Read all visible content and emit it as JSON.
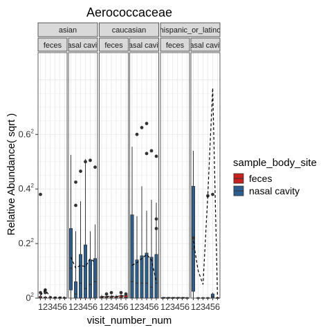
{
  "chart_data": {
    "type": "box",
    "title": "Aerococcaceae",
    "xlabel": "visit_number_num",
    "ylabel": "Relative Abundance( sqrt )",
    "ylim": [
      0,
      0.9
    ],
    "y_ticks": [
      {
        "value": 0.0,
        "label": "0",
        "sup": "2"
      },
      {
        "value": 0.2,
        "label": "0.2",
        "sup": "2"
      },
      {
        "value": 0.4,
        "label": "0.4",
        "sup": "2"
      },
      {
        "value": 0.6,
        "label": "0.6",
        "sup": "2"
      }
    ],
    "x_ticks": [
      "1",
      "2",
      "3",
      "4",
      "5",
      "6"
    ],
    "strips_outer": [
      "asian",
      "caucasian",
      "hispanic_or_latino"
    ],
    "strips_inner": [
      "feces",
      "nasal cavity"
    ],
    "legend": {
      "title": "sample_body_site",
      "items": [
        {
          "label": "feces",
          "color": "#c8211e"
        },
        {
          "label": "nasal cavity",
          "color": "#2a5f8f"
        }
      ]
    },
    "colors": {
      "feces": "#c8211e",
      "nasal_cavity": "#2a5f8f",
      "strip_bg": "#d9d9d9",
      "grid": "#ebebeb"
    },
    "panels": [
      {
        "group": "asian",
        "site": "feces",
        "boxes": [
          {
            "x": 1,
            "min": 0,
            "q1": 0,
            "med": 0.002,
            "q3": 0.006,
            "max": 0.012
          },
          {
            "x": 2,
            "min": 0,
            "q1": 0,
            "med": 0.001,
            "q3": 0.004,
            "max": 0.008
          },
          {
            "x": 3,
            "min": 0,
            "q1": 0,
            "med": 0.001,
            "q3": 0.003,
            "max": 0.006
          },
          {
            "x": 4,
            "min": 0,
            "q1": 0,
            "med": 0.001,
            "q3": 0.002,
            "max": 0.004
          },
          {
            "x": 5,
            "min": 0,
            "q1": 0,
            "med": 0.001,
            "q3": 0.002,
            "max": 0.004
          },
          {
            "x": 6,
            "min": 0,
            "q1": 0,
            "med": 0.001,
            "q3": 0.002,
            "max": 0.004
          }
        ],
        "outliers": [
          [
            1,
            0.38
          ],
          [
            1,
            0.02
          ],
          [
            2,
            0.03
          ],
          [
            2,
            0.02
          ]
        ],
        "mean_line": [
          [
            1,
            0.01
          ],
          [
            2,
            0.03
          ],
          [
            3,
            0.005
          ],
          [
            4,
            0.004
          ],
          [
            5,
            0.004
          ],
          [
            6,
            0.004
          ]
        ]
      },
      {
        "group": "asian",
        "site": "nasal cavity",
        "boxes": [
          {
            "x": 1,
            "min": 0,
            "q1": 0.03,
            "med": 0.11,
            "q3": 0.255,
            "max": 0.525
          },
          {
            "x": 2,
            "min": 0,
            "q1": 0.0,
            "med": 0.015,
            "q3": 0.06,
            "max": 0.245
          },
          {
            "x": 3,
            "min": 0,
            "q1": 0.0,
            "med": 0.055,
            "q3": 0.16,
            "max": 0.355
          },
          {
            "x": 4,
            "min": 0,
            "q1": 0.0,
            "med": 0.035,
            "q3": 0.195,
            "max": 0.51
          },
          {
            "x": 5,
            "min": 0,
            "q1": 0.0,
            "med": 0.05,
            "q3": 0.14,
            "max": 0.245
          },
          {
            "x": 6,
            "min": 0,
            "q1": 0.0,
            "med": 0.06,
            "q3": 0.145,
            "max": 0.27
          }
        ],
        "outliers": [
          [
            2,
            0.425
          ],
          [
            2,
            0.34
          ],
          [
            3,
            0.465
          ],
          [
            4,
            0.5
          ],
          [
            5,
            0.505
          ],
          [
            6,
            0.48
          ]
        ],
        "mean_line": [
          [
            1,
            0.15
          ],
          [
            2,
            0.11
          ],
          [
            3,
            0.12
          ],
          [
            4,
            0.115
          ],
          [
            5,
            0.145
          ],
          [
            6,
            0.13
          ]
        ]
      },
      {
        "group": "caucasian",
        "site": "feces",
        "boxes": [
          {
            "x": 1,
            "min": 0,
            "q1": 0,
            "med": 0.002,
            "q3": 0.006,
            "max": 0.012
          },
          {
            "x": 2,
            "min": 0,
            "q1": 0,
            "med": 0.002,
            "q3": 0.006,
            "max": 0.012
          },
          {
            "x": 3,
            "min": 0,
            "q1": 0,
            "med": 0.002,
            "q3": 0.006,
            "max": 0.012
          },
          {
            "x": 4,
            "min": 0,
            "q1": 0,
            "med": 0.002,
            "q3": 0.006,
            "max": 0.012
          },
          {
            "x": 5,
            "min": 0,
            "q1": 0,
            "med": 0.002,
            "q3": 0.01,
            "max": 0.02
          },
          {
            "x": 6,
            "min": 0,
            "q1": 0,
            "med": 0.002,
            "q3": 0.01,
            "max": 0.02
          }
        ],
        "outliers": [
          [
            2,
            0.015
          ],
          [
            3,
            0.02
          ],
          [
            5,
            0.02
          ],
          [
            6,
            0.015
          ]
        ],
        "mean_line": [
          [
            1,
            0.005
          ],
          [
            2,
            0.006
          ],
          [
            3,
            0.007
          ],
          [
            4,
            0.006
          ],
          [
            5,
            0.008
          ],
          [
            6,
            0.008
          ]
        ]
      },
      {
        "group": "caucasian",
        "site": "nasal cavity",
        "boxes": [
          {
            "x": 1,
            "min": 0,
            "q1": 0.0,
            "med": 0.06,
            "q3": 0.305,
            "max": 0.555
          },
          {
            "x": 2,
            "min": 0,
            "q1": 0.0,
            "med": 0.055,
            "q3": 0.14,
            "max": 0.3
          },
          {
            "x": 3,
            "min": 0,
            "q1": 0.0,
            "med": 0.055,
            "q3": 0.155,
            "max": 0.41
          },
          {
            "x": 4,
            "min": 0,
            "q1": 0.0,
            "med": 0.055,
            "q3": 0.165,
            "max": 0.32
          },
          {
            "x": 5,
            "min": 0,
            "q1": 0.0,
            "med": 0.04,
            "q3": 0.15,
            "max": 0.36
          },
          {
            "x": 6,
            "min": 0,
            "q1": 0.0,
            "med": 0.055,
            "q3": 0.16,
            "max": 0.35
          }
        ],
        "outliers": [
          [
            2,
            0.6
          ],
          [
            3,
            0.625
          ],
          [
            4,
            0.64
          ],
          [
            4,
            0.53
          ],
          [
            5,
            0.54
          ],
          [
            6,
            0.52
          ],
          [
            6,
            0.29
          ],
          [
            6,
            0.255
          ]
        ],
        "mean_line": [
          [
            1,
            0.12
          ],
          [
            2,
            0.13
          ],
          [
            3,
            0.145
          ],
          [
            4,
            0.16
          ],
          [
            5,
            0.14
          ],
          [
            6,
            0.06
          ]
        ]
      },
      {
        "group": "hispanic_or_latino",
        "site": "feces",
        "boxes": [
          {
            "x": 1,
            "min": 0,
            "q1": 0,
            "med": 0.001,
            "q3": 0.002,
            "max": 0.004
          },
          {
            "x": 2,
            "min": 0,
            "q1": 0,
            "med": 0.001,
            "q3": 0.002,
            "max": 0.004
          },
          {
            "x": 3,
            "min": 0,
            "q1": 0,
            "med": 0.001,
            "q3": 0.002,
            "max": 0.004
          },
          {
            "x": 4,
            "min": 0,
            "q1": 0,
            "med": 0.001,
            "q3": 0.002,
            "max": 0.004
          },
          {
            "x": 5,
            "min": 0,
            "q1": 0,
            "med": 0.001,
            "q3": 0.002,
            "max": 0.004
          },
          {
            "x": 6,
            "min": 0,
            "q1": 0,
            "med": 0.001,
            "q3": 0.002,
            "max": 0.004
          }
        ],
        "outliers": [],
        "mean_line": [
          [
            1,
            0.002
          ],
          [
            2,
            0.002
          ],
          [
            3,
            0.002
          ],
          [
            4,
            0.002
          ],
          [
            5,
            0.002
          ],
          [
            6,
            0.002
          ]
        ]
      },
      {
        "group": "hispanic_or_latino",
        "site": "nasal cavity",
        "boxes": [
          {
            "x": 1,
            "min": 0,
            "q1": 0.025,
            "med": 0.18,
            "q3": 0.41,
            "max": 0.54
          },
          {
            "x": 2,
            "min": 0,
            "q1": 0,
            "med": 0.001,
            "q3": 0.002,
            "max": 0.004
          },
          {
            "x": 3,
            "min": 0,
            "q1": 0,
            "med": 0.001,
            "q3": 0.002,
            "max": 0.004
          },
          {
            "x": 4,
            "min": 0,
            "q1": 0,
            "med": 0.001,
            "q3": 0.002,
            "max": 0.004
          },
          {
            "x": 5,
            "min": 0,
            "q1": 0,
            "med": 0.005,
            "q3": 0.015,
            "max": 0.02
          },
          {
            "x": 6,
            "min": 0,
            "q1": 0,
            "med": 0.001,
            "q3": 0.002,
            "max": 0.004
          }
        ],
        "outliers": [
          [
            1,
            0.22
          ],
          [
            4,
            0.375
          ],
          [
            5,
            0.38
          ]
        ],
        "mean_line": [
          [
            1,
            0.21
          ],
          [
            2,
            0.1
          ],
          [
            3,
            0.05
          ],
          [
            4,
            0.38
          ],
          [
            5,
            0.77
          ],
          [
            6,
            0.0
          ]
        ]
      }
    ]
  }
}
